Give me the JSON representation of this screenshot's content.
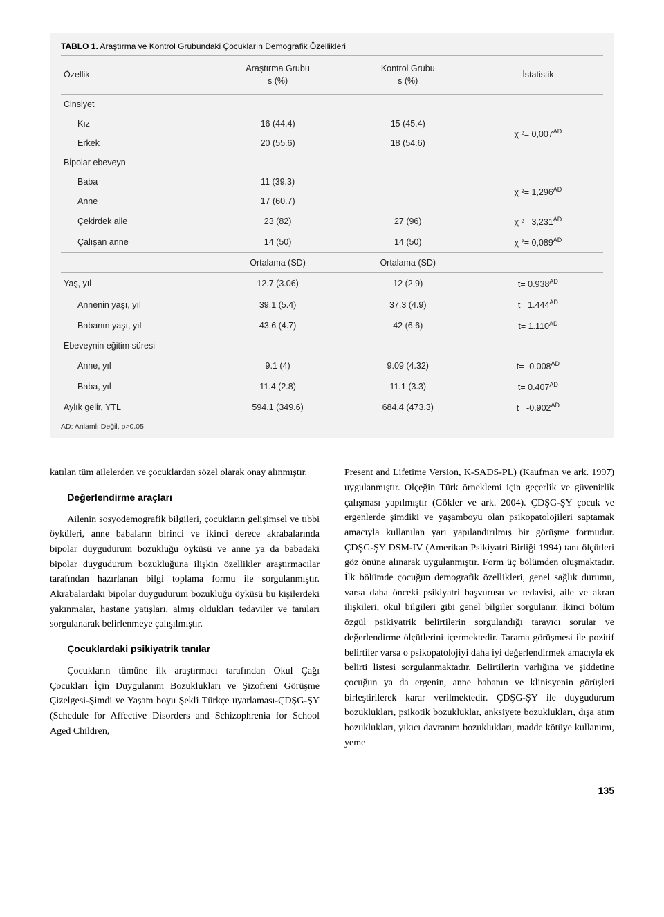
{
  "table": {
    "title_bold": "TABLO 1.",
    "title_rest": " Araştırma ve Kontrol Grubundaki Çocukların Demografik Özellikleri",
    "columns": {
      "feature": "Özellik",
      "group1_line1": "Araştırma Grubu",
      "group1_line2": "s (%)",
      "group2_line1": "Kontrol Grubu",
      "group2_line2": "s (%)",
      "stat": "İstatistik"
    },
    "rows": [
      {
        "feature": "Cinsiyet",
        "g1": "",
        "g2": "",
        "stat": "",
        "indent": 0,
        "border": false,
        "stat_rowspan": 1
      },
      {
        "feature": "Kız",
        "g1": "16 (44.4)",
        "g2": "15 (45.4)",
        "stat": "χ ²= 0,007",
        "stat_sup": "AD",
        "indent": 1,
        "border": false,
        "stat_rowspan": 2
      },
      {
        "feature": "Erkek",
        "g1": "20 (55.6)",
        "g2": "18 (54.6)",
        "stat": "",
        "indent": 1,
        "border": false,
        "skip_stat": true
      },
      {
        "feature": "Bipolar ebeveyn",
        "g1": "",
        "g2": "",
        "stat": "",
        "indent": 0,
        "border": false
      },
      {
        "feature": "Baba",
        "g1": "11 (39.3)",
        "g2": "",
        "stat": "χ ²= 1,296",
        "stat_sup": "AD",
        "indent": 1,
        "border": false,
        "stat_rowspan": 2
      },
      {
        "feature": "Anne",
        "g1": "17 (60.7)",
        "g2": "",
        "stat": "",
        "indent": 1,
        "border": false,
        "skip_stat": true
      },
      {
        "feature": "Çekirdek aile",
        "g1": "23 (82)",
        "g2": "27 (96)",
        "stat": "χ ²= 3,231",
        "stat_sup": "AD",
        "indent": 1,
        "border": false
      },
      {
        "feature": "Çalışan anne",
        "g1": "14 (50)",
        "g2": "14 (50)",
        "stat": "χ ²= 0,089",
        "stat_sup": "AD",
        "indent": 1,
        "border": true
      },
      {
        "feature": "",
        "g1": "Ortalama (SD)",
        "g2": "Ortalama (SD)",
        "stat": "",
        "indent": 0,
        "border": true
      },
      {
        "feature": "Yaş, yıl",
        "g1": "12.7 (3.06)",
        "g2": "12 (2.9)",
        "stat": "t= 0.938",
        "stat_sup": "AD",
        "indent": 0,
        "border": false
      },
      {
        "feature": "Annenin yaşı, yıl",
        "g1": "39.1 (5.4)",
        "g2": "37.3 (4.9)",
        "stat": "t= 1.444",
        "stat_sup": "AD",
        "indent": 1,
        "border": false
      },
      {
        "feature": "Babanın yaşı, yıl",
        "g1": "43.6 (4.7)",
        "g2": "42 (6.6)",
        "stat": "t= 1.110",
        "stat_sup": "AD",
        "indent": 1,
        "border": false
      },
      {
        "feature": "Ebeveynin eğitim süresi",
        "g1": "",
        "g2": "",
        "stat": "",
        "indent": 0,
        "border": false
      },
      {
        "feature": "Anne, yıl",
        "g1": "9.1 (4)",
        "g2": "9.09 (4.32)",
        "stat": "t= -0.008",
        "stat_sup": "AD",
        "indent": 1,
        "border": false
      },
      {
        "feature": "Baba, yıl",
        "g1": "11.4 (2.8)",
        "g2": "11.1 (3.3)",
        "stat": "t= 0.407",
        "stat_sup": "AD",
        "indent": 1,
        "border": false
      },
      {
        "feature": "Aylık gelir, YTL",
        "g1": "594.1 (349.6)",
        "g2": "684.4 (473.3)",
        "stat": "t= -0.902",
        "stat_sup": "AD",
        "indent": 0,
        "border": true
      }
    ],
    "footnote": "AD: Anlamlı Değil, p>0.05."
  },
  "body": {
    "col1": {
      "p1": "katılan tüm ailelerden ve çocuklardan sözel olarak onay alınmıştır.",
      "h1": "Değerlendirme araçları",
      "p2": "Ailenin sosyodemografik bilgileri, çocukların geli­şimsel ve tıbbi öyküleri, anne babaların birinci ve ikinci derece akrabalarında bipolar duygudurum bozukluğu öyküsü ve anne ya da babadaki bipolar duygudurum bozukluğuna ilişkin özellikler araştırmacılar tarafın­dan hazırlanan bilgi toplama formu ile sorgulanmıştır. Akrabalardaki bipolar duygudurum bozukluğu öyküsü bu kişilerdeki yakınmalar, hastane yatışları, almış ol­dukları tedaviler ve tanıları sorgulanarak belirlenmeye çalışılmıştır.",
      "h2": "Çocuklardaki psikiyatrik tanılar",
      "p3": "Çocukların tümüne ilk araştırmacı tarafından Okul Çağı Çocukları İçin Duygulanım Bozuklukları ve Şizofreni Görüşme Çizelgesi-Şimdi ve Yaşam boyu Şekli Türkçe uyarlaması-ÇDŞG-ŞY (Schedule for Affective Disorders and Schizophrenia for School Aged Children,"
    },
    "col2": {
      "p1": "Present and Lifetime Version, K-SADS-PL) (Kaufman ve ark. 1997) uygulanmıştır. Ölçeğin Türk örneklemi için geçerlik ve güvenirlik çalışması yapılmıştır (Gökler ve ark. 2004). ÇDŞG-ŞY çocuk ve ergenlerde şimdiki ve yaşamboyu olan psikopatolojileri saptamak amacıyla kullanılan yarı yapılandırılmış bir görüşme formudur. ÇDŞG-ŞY DSM-IV (Amerikan Psikiyatri Birliği 1994) tanı ölçütleri göz önüne alınarak uygulanmıştır. Form üç bölümden oluşmaktadır. İlk bölümde çocuğun de­mografik özellikleri, genel sağlık durumu, varsa daha önceki psikiyatri başvurusu ve tedavisi, aile ve akran ilişkileri, okul bilgileri gibi genel bilgiler sorgulanır. İkinci bölüm özgül psikiyatrik belirtilerin sorgulandığı tarayıcı sorular ve değerlendirme ölçütlerini içermekte­dir. Tarama görüşmesi ile pozitif belirtiler varsa o psiko­patolojiyi daha iyi değerlendirmek amacıyla ek belirti listesi sorgulanmaktadır. Belirtilerin varlığına ve şidde­tine çocuğun ya da ergenin, anne babanın ve klinisyenin görüşleri birleştirilerek karar verilmektedir. ÇDŞG-ŞY ile duygudurum bozuklukları, psikotik bozukluklar, anksiyete bozuklukları, dışa atım bozuklukları, yıkıcı davranım bozuklukları, madde kötüye kullanımı, yeme"
    }
  },
  "page_number": "135",
  "colors": {
    "table_bg": "#f2f2f2",
    "border": "#b0b0b0",
    "text": "#000000"
  }
}
